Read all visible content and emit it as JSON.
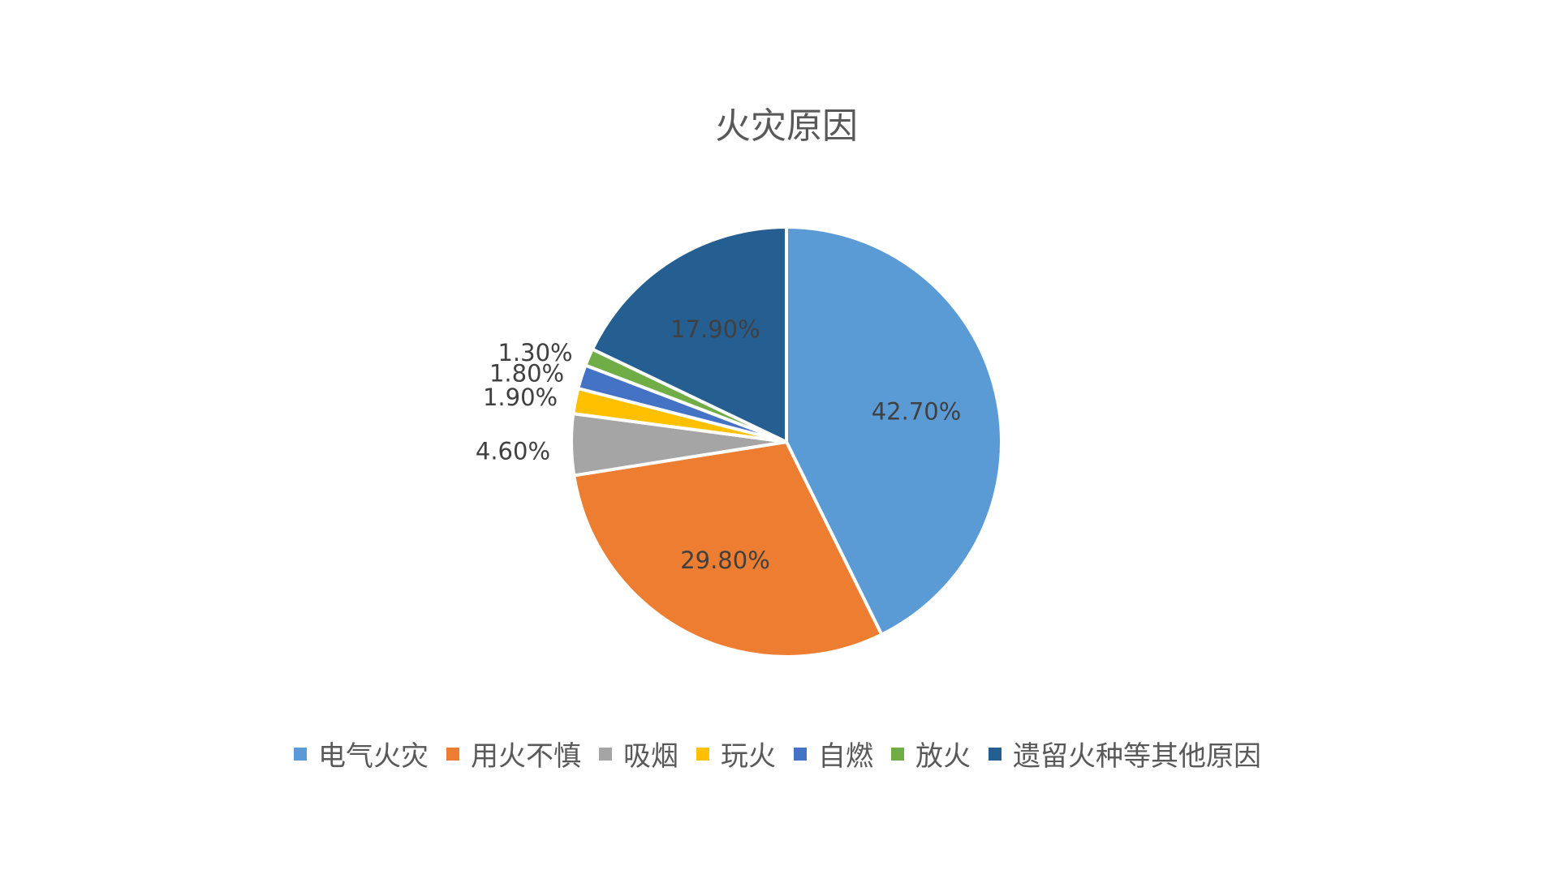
{
  "chart_data": {
    "type": "pie",
    "title": "火灾原因",
    "categories": [
      "电气火灾",
      "用火不慎",
      "吸烟",
      "玩火",
      "自燃",
      "放火",
      "遗留火种等其他原因"
    ],
    "values": [
      42.7,
      29.8,
      4.6,
      1.9,
      1.8,
      1.3,
      17.9
    ],
    "labels": [
      "42.70%",
      "29.80%",
      "4.60%",
      "1.90%",
      "1.80%",
      "1.30%",
      "17.90%"
    ],
    "colors": [
      "#5B9BD5",
      "#ED7D31",
      "#A5A5A5",
      "#FFC000",
      "#4472C4",
      "#70AD47",
      "#255E91"
    ],
    "start_angle": "12 o'clock",
    "direction": "clockwise",
    "legend_position": "bottom"
  }
}
